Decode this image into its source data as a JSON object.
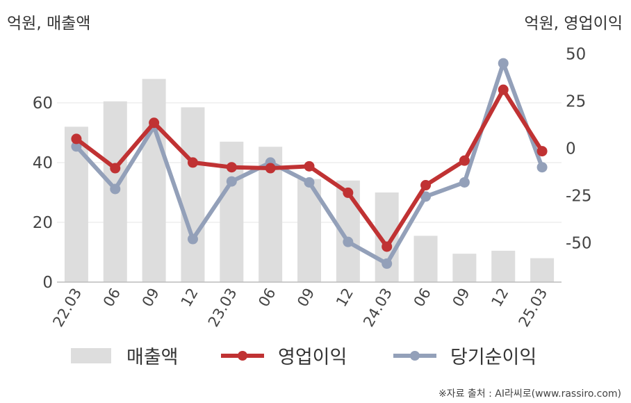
{
  "chart_data": {
    "type": "bar+line",
    "left_axis_label": "억원, 매출액",
    "right_axis_label": "억원, 영업이익",
    "categories": [
      "22.03",
      "06",
      "09",
      "12",
      "23.03",
      "06",
      "09",
      "12",
      "24.03",
      "06",
      "09",
      "12",
      "25.03"
    ],
    "left_ylim": [
      0,
      70
    ],
    "left_ticks": [
      0,
      20,
      40,
      60
    ],
    "right_ylim": [
      -70,
      55
    ],
    "right_ticks": [
      50,
      25,
      0,
      -25,
      -50
    ],
    "series": [
      {
        "name": "매출액",
        "type": "bar",
        "axis": "left",
        "color": "#dddddd",
        "values": [
          52,
          60.5,
          68,
          58.5,
          47,
          45.3,
          34.5,
          34,
          30,
          15.5,
          9.5,
          10.5,
          8
        ]
      },
      {
        "name": "영업이익",
        "type": "line",
        "axis": "right",
        "color": "#c03233",
        "values": [
          5,
          -10.5,
          13.5,
          -7.5,
          -10,
          -10.5,
          -9.5,
          -23.5,
          -52,
          -19.5,
          -6.5,
          31,
          -1.5
        ]
      },
      {
        "name": "당기순이익",
        "type": "line",
        "axis": "right",
        "color": "#93a0b9",
        "values": [
          1,
          -21.5,
          11.5,
          -48,
          -17.5,
          -7.5,
          -18,
          -49.5,
          -61,
          -25.5,
          -18,
          45,
          -10
        ]
      }
    ],
    "grid": true,
    "legend_position": "bottom"
  },
  "source": "※자료 출처 : AI라씨로(www.rassiro.com)"
}
